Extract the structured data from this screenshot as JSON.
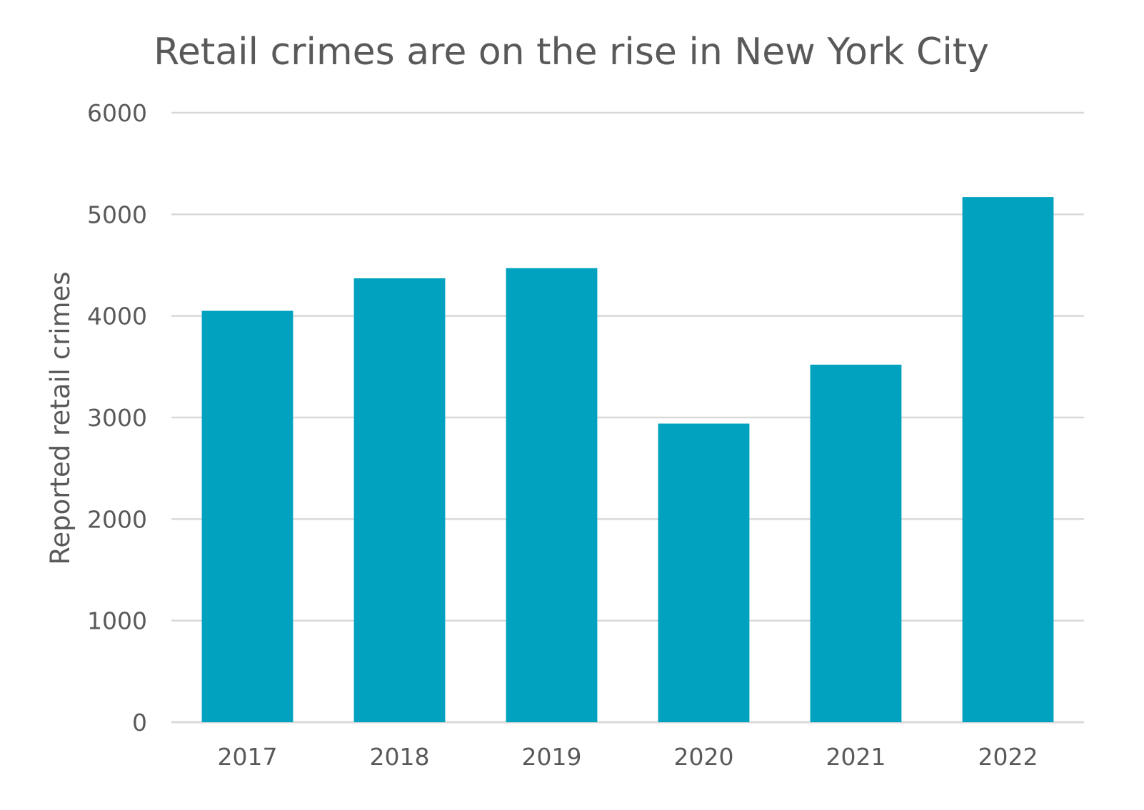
{
  "chart_data": {
    "type": "bar",
    "title": "Retail crimes are on the rise in New York City",
    "xlabel": "",
    "ylabel": "Reported retail crimes",
    "categories": [
      "2017",
      "2018",
      "2019",
      "2020",
      "2021",
      "2022"
    ],
    "values": [
      4050,
      4370,
      4470,
      2940,
      3520,
      5170
    ],
    "ylim": [
      0,
      6000
    ],
    "yticks": [
      0,
      1000,
      2000,
      3000,
      4000,
      5000,
      6000
    ],
    "grid": true,
    "legend": "none",
    "colors": {
      "bar": "#00A2BF",
      "grid": "#D9D9D9",
      "text": "#595959"
    }
  }
}
